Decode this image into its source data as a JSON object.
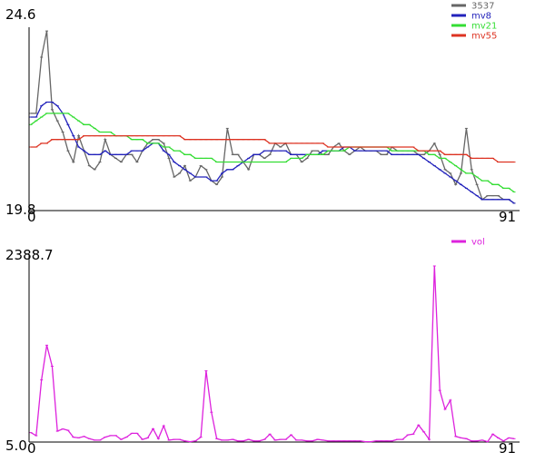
{
  "chart_data": [
    {
      "type": "line",
      "x_range": [
        0,
        91
      ],
      "ylim": [
        19.8,
        24.6
      ],
      "x_tick_labels": [
        "0",
        "91"
      ],
      "y_tick_labels": [
        "24.6",
        "19.8"
      ],
      "legend_placement": "top-right",
      "grid": false,
      "series": [
        {
          "name": "3537",
          "color": "#666666",
          "values": [
            22.3,
            22.3,
            23.8,
            24.5,
            22.4,
            22.1,
            21.8,
            21.3,
            21.0,
            21.7,
            21.3,
            20.9,
            20.8,
            21.0,
            21.6,
            21.2,
            21.1,
            21.0,
            21.2,
            21.2,
            21.0,
            21.3,
            21.5,
            21.6,
            21.6,
            21.5,
            21.1,
            20.6,
            20.7,
            20.9,
            20.5,
            20.6,
            20.9,
            20.8,
            20.5,
            20.4,
            20.6,
            21.9,
            21.2,
            21.2,
            21.0,
            20.8,
            21.2,
            21.2,
            21.1,
            21.2,
            21.5,
            21.4,
            21.5,
            21.2,
            21.2,
            21.0,
            21.1,
            21.3,
            21.3,
            21.2,
            21.2,
            21.4,
            21.5,
            21.3,
            21.2,
            21.3,
            21.4,
            21.3,
            21.3,
            21.3,
            21.2,
            21.2,
            21.4,
            21.3,
            21.3,
            21.3,
            21.3,
            21.2,
            21.2,
            21.3,
            21.5,
            21.2,
            20.8,
            20.7,
            20.4,
            20.7,
            21.9,
            20.8,
            20.4,
            20.0,
            20.1,
            20.1,
            20.1,
            20.0,
            20.0,
            19.9
          ]
        },
        {
          "name": "mv8",
          "color": "#2222bb",
          "values": [
            22.2,
            22.2,
            22.5,
            22.6,
            22.6,
            22.5,
            22.3,
            22.0,
            21.7,
            21.4,
            21.3,
            21.2,
            21.2,
            21.2,
            21.3,
            21.2,
            21.2,
            21.2,
            21.2,
            21.3,
            21.3,
            21.3,
            21.4,
            21.5,
            21.5,
            21.3,
            21.2,
            21.0,
            20.9,
            20.8,
            20.7,
            20.6,
            20.6,
            20.6,
            20.5,
            20.5,
            20.7,
            20.8,
            20.8,
            20.9,
            21.0,
            21.1,
            21.2,
            21.2,
            21.3,
            21.3,
            21.3,
            21.3,
            21.3,
            21.2,
            21.2,
            21.2,
            21.2,
            21.2,
            21.2,
            21.3,
            21.3,
            21.3,
            21.3,
            21.4,
            21.4,
            21.3,
            21.3,
            21.3,
            21.3,
            21.3,
            21.3,
            21.3,
            21.2,
            21.2,
            21.2,
            21.2,
            21.2,
            21.2,
            21.1,
            21.0,
            20.9,
            20.8,
            20.7,
            20.6,
            20.5,
            20.4,
            20.3,
            20.2,
            20.1,
            20.0,
            20.0,
            20.0,
            20.0,
            20.0,
            20.0,
            19.9
          ]
        },
        {
          "name": "mv21",
          "color": "#33dd33",
          "values": [
            22.0,
            22.1,
            22.2,
            22.3,
            22.3,
            22.3,
            22.3,
            22.3,
            22.2,
            22.1,
            22.0,
            22.0,
            21.9,
            21.8,
            21.8,
            21.8,
            21.7,
            21.7,
            21.7,
            21.6,
            21.6,
            21.6,
            21.5,
            21.5,
            21.5,
            21.4,
            21.4,
            21.3,
            21.3,
            21.2,
            21.2,
            21.1,
            21.1,
            21.1,
            21.1,
            21.0,
            21.0,
            21.0,
            21.0,
            21.0,
            21.0,
            21.0,
            21.0,
            21.0,
            21.0,
            21.0,
            21.0,
            21.0,
            21.0,
            21.1,
            21.1,
            21.1,
            21.2,
            21.2,
            21.2,
            21.2,
            21.3,
            21.3,
            21.3,
            21.3,
            21.4,
            21.4,
            21.4,
            21.4,
            21.4,
            21.4,
            21.4,
            21.4,
            21.3,
            21.3,
            21.3,
            21.3,
            21.3,
            21.3,
            21.3,
            21.2,
            21.2,
            21.1,
            21.1,
            21.0,
            20.9,
            20.8,
            20.7,
            20.7,
            20.6,
            20.5,
            20.5,
            20.4,
            20.4,
            20.3,
            20.3,
            20.2
          ]
        },
        {
          "name": "mv55",
          "color": "#dd3322",
          "values": [
            21.4,
            21.4,
            21.5,
            21.5,
            21.6,
            21.6,
            21.6,
            21.6,
            21.6,
            21.6,
            21.7,
            21.7,
            21.7,
            21.7,
            21.7,
            21.7,
            21.7,
            21.7,
            21.7,
            21.7,
            21.7,
            21.7,
            21.7,
            21.7,
            21.7,
            21.7,
            21.7,
            21.7,
            21.7,
            21.6,
            21.6,
            21.6,
            21.6,
            21.6,
            21.6,
            21.6,
            21.6,
            21.6,
            21.6,
            21.6,
            21.6,
            21.6,
            21.6,
            21.6,
            21.6,
            21.5,
            21.5,
            21.5,
            21.5,
            21.5,
            21.5,
            21.5,
            21.5,
            21.5,
            21.5,
            21.5,
            21.4,
            21.4,
            21.4,
            21.4,
            21.4,
            21.4,
            21.4,
            21.4,
            21.4,
            21.4,
            21.4,
            21.4,
            21.4,
            21.4,
            21.4,
            21.4,
            21.4,
            21.3,
            21.3,
            21.3,
            21.3,
            21.3,
            21.2,
            21.2,
            21.2,
            21.2,
            21.2,
            21.1,
            21.1,
            21.1,
            21.1,
            21.1,
            21.0,
            21.0,
            21.0,
            21.0
          ]
        }
      ]
    },
    {
      "type": "line",
      "x_range": [
        0,
        91
      ],
      "ylim": [
        5.0,
        2388.7
      ],
      "x_tick_labels": [
        "0",
        "91"
      ],
      "y_tick_labels": [
        "2388.7",
        "5.0"
      ],
      "legend_placement": "top-right",
      "grid": false,
      "series": [
        {
          "name": "vol",
          "color": "#dd22dd",
          "values": [
            130,
            90,
            830,
            1290,
            1010,
            150,
            180,
            160,
            70,
            60,
            80,
            50,
            30,
            30,
            70,
            90,
            90,
            40,
            70,
            120,
            120,
            40,
            60,
            180,
            50,
            220,
            30,
            40,
            40,
            20,
            10,
            20,
            70,
            950,
            400,
            50,
            30,
            30,
            40,
            20,
            20,
            40,
            20,
            20,
            40,
            110,
            30,
            40,
            40,
            100,
            30,
            30,
            20,
            20,
            40,
            30,
            20,
            20,
            20,
            20,
            20,
            20,
            20,
            10,
            10,
            20,
            20,
            20,
            20,
            40,
            40,
            100,
            110,
            230,
            140,
            40,
            2340,
            690,
            440,
            560,
            80,
            60,
            50,
            20,
            20,
            30,
            10,
            110,
            60,
            20,
            60,
            50
          ]
        }
      ]
    }
  ]
}
